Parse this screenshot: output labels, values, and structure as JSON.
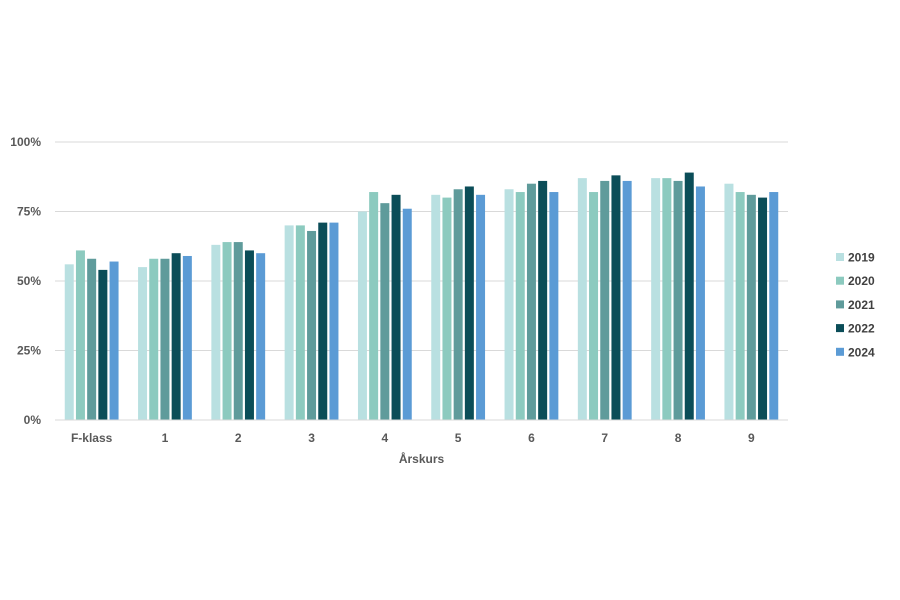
{
  "chart_data": {
    "type": "bar",
    "title": "",
    "xlabel": "Årskurs",
    "ylabel": "",
    "categories": [
      "F-klass",
      "1",
      "2",
      "3",
      "4",
      "5",
      "6",
      "7",
      "8",
      "9"
    ],
    "ylim": [
      0,
      100
    ],
    "yticks": [
      0,
      25,
      50,
      75,
      100
    ],
    "ytick_labels": [
      "0%",
      "25%",
      "50%",
      "75%",
      "100%"
    ],
    "grid": true,
    "legend_position": "right",
    "series": [
      {
        "name": "2019",
        "color": "#b9e0e1",
        "values": [
          56,
          55,
          63,
          70,
          75,
          81,
          83,
          87,
          87,
          85
        ]
      },
      {
        "name": "2020",
        "color": "#8ccabf",
        "values": [
          61,
          58,
          64,
          70,
          82,
          80,
          82,
          82,
          87,
          82
        ]
      },
      {
        "name": "2021",
        "color": "#5f9b9b",
        "values": [
          58,
          58,
          64,
          68,
          78,
          83,
          85,
          86,
          86,
          81
        ]
      },
      {
        "name": "2022",
        "color": "#0b4d58",
        "values": [
          54,
          60,
          61,
          71,
          81,
          84,
          86,
          88,
          89,
          80
        ]
      },
      {
        "name": "2024",
        "color": "#5b9bd5",
        "values": [
          57,
          59,
          60,
          71,
          76,
          81,
          82,
          86,
          84,
          82
        ]
      }
    ]
  }
}
